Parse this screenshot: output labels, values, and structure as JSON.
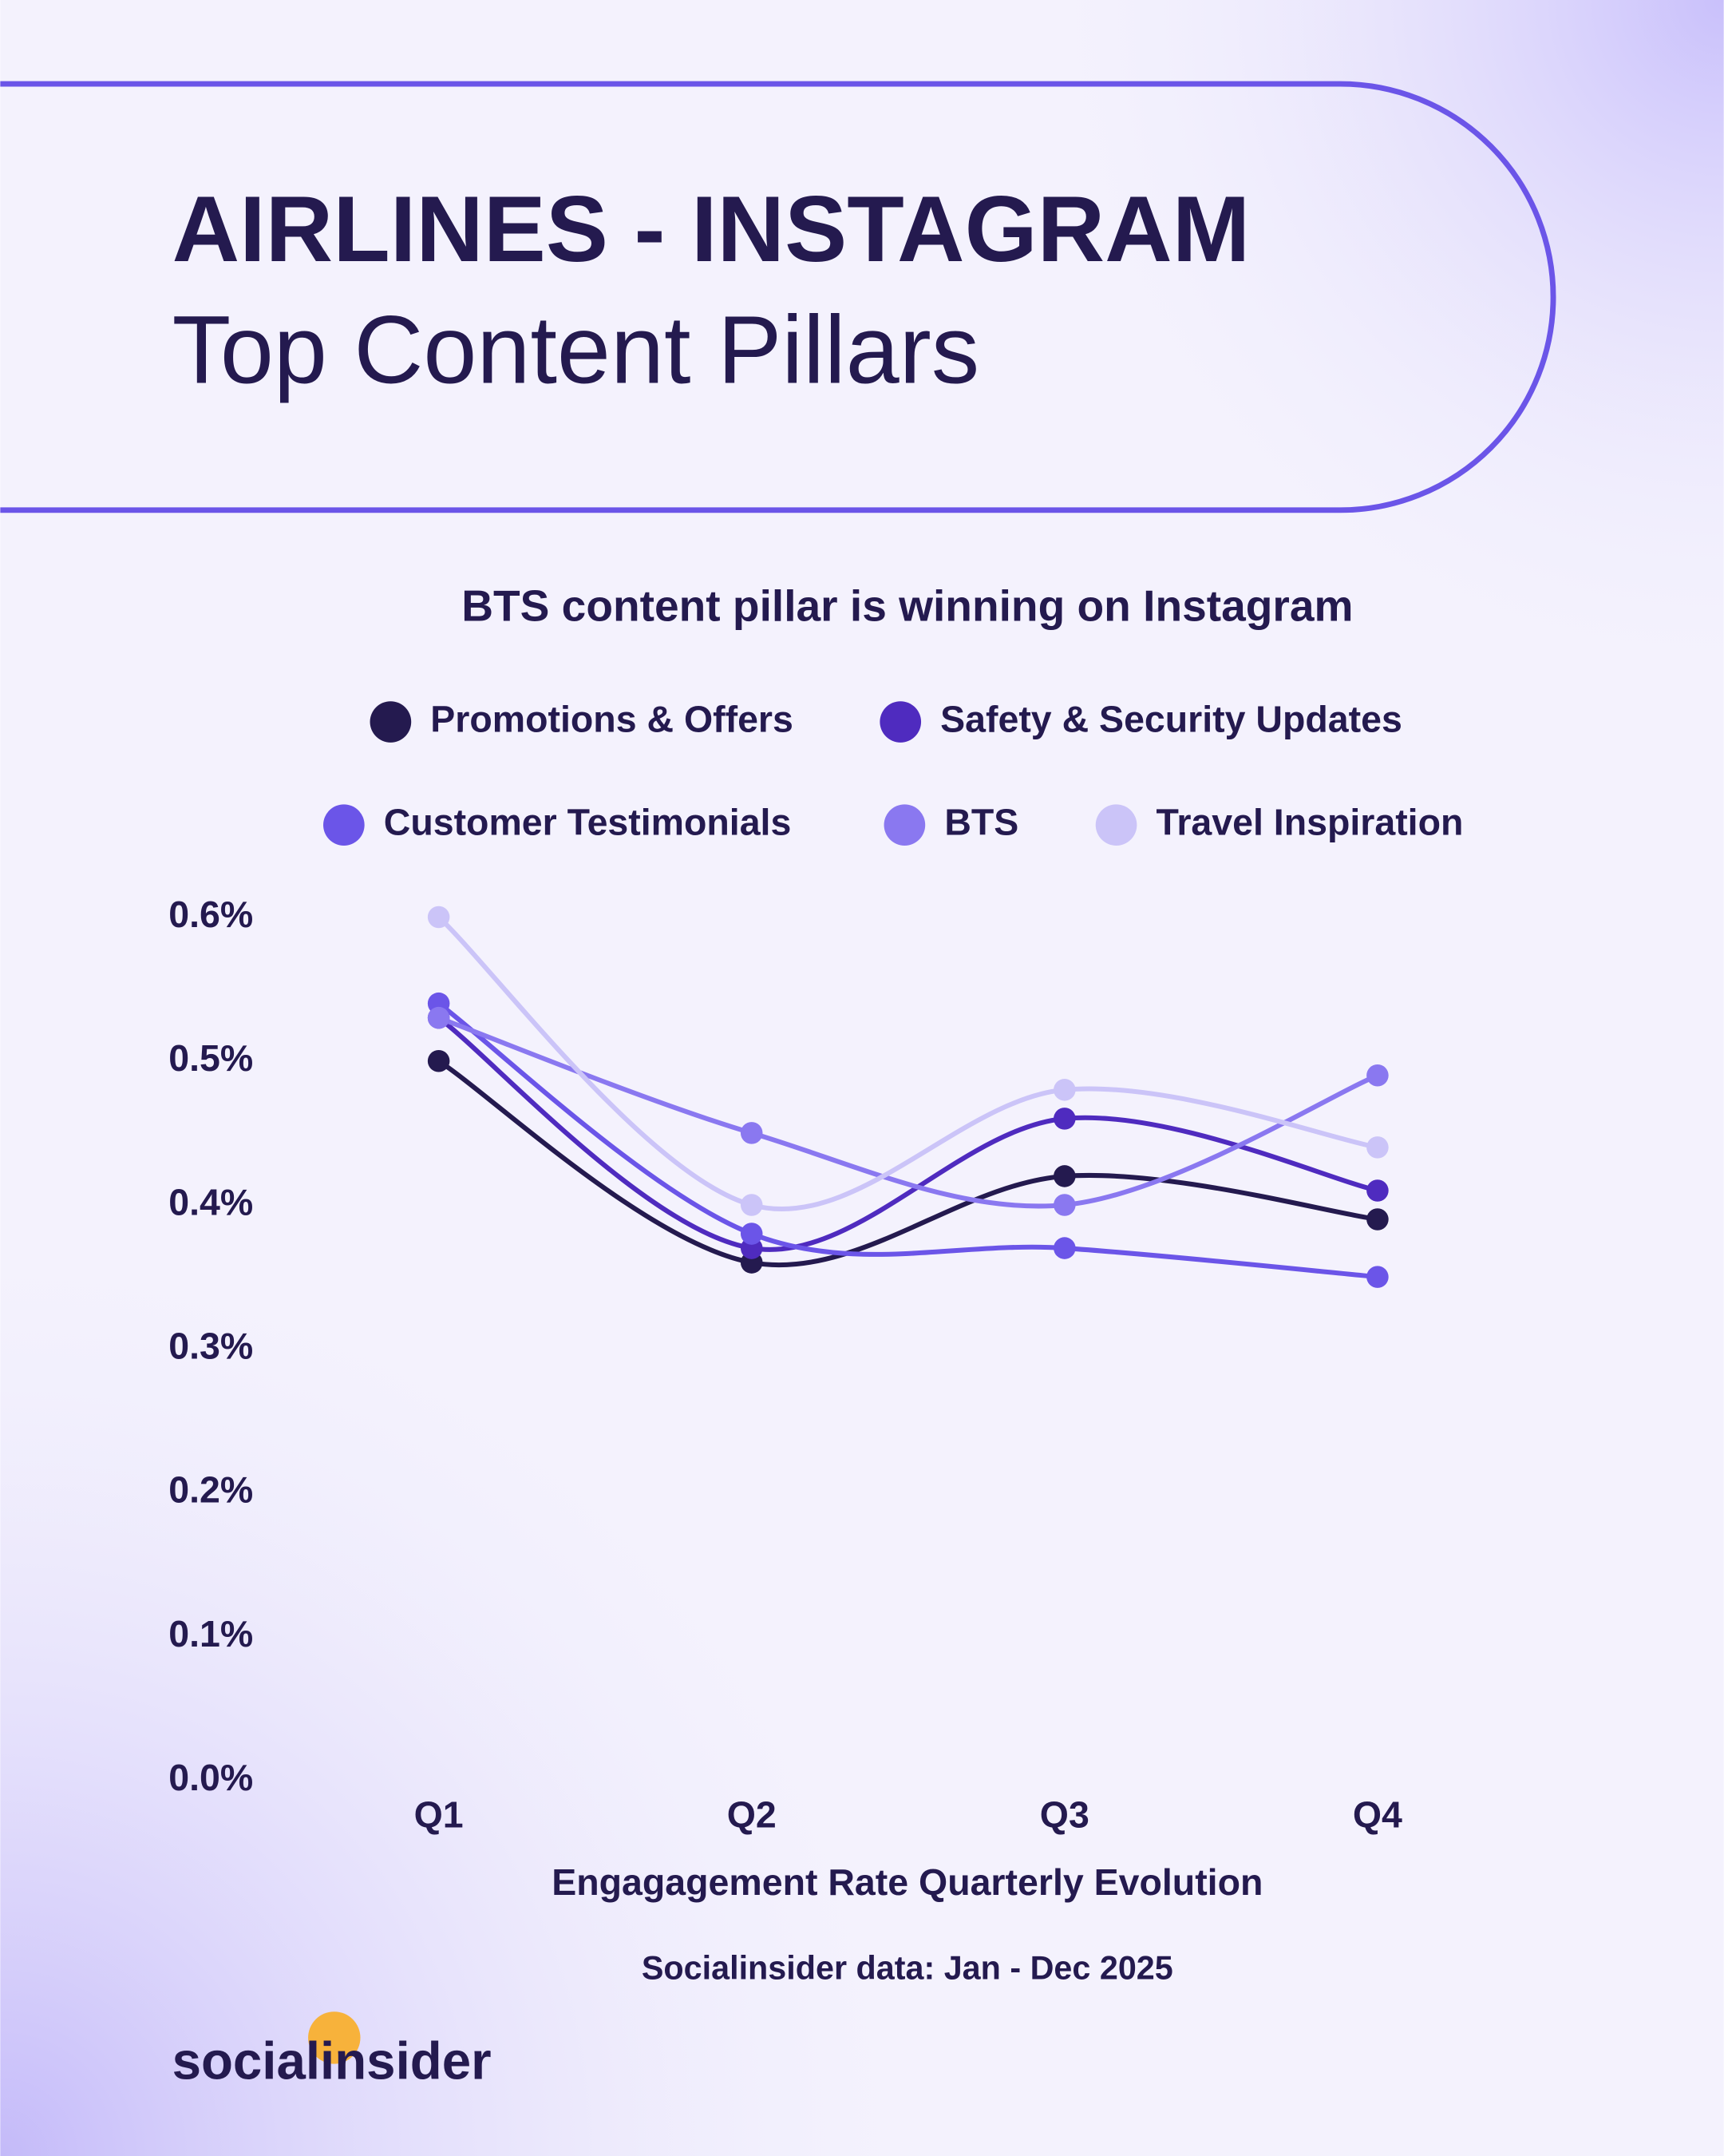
{
  "header": {
    "title": "AIRLINES - INSTAGRAM",
    "subtitle": "Top Content Pillars"
  },
  "chart_data": {
    "type": "line",
    "title": "BTS content pillar is winning on Instagram",
    "categories": [
      "Q1",
      "Q2",
      "Q3",
      "Q4"
    ],
    "series": [
      {
        "name": "Promotions & Offers",
        "color": "#241a4f",
        "values": [
          0.5,
          0.36,
          0.42,
          0.39
        ]
      },
      {
        "name": "Safety & Security Updates",
        "color": "#4f2bbf",
        "values": [
          0.53,
          0.37,
          0.46,
          0.41
        ]
      },
      {
        "name": "Customer Testimonials",
        "color": "#6b55e8",
        "values": [
          0.54,
          0.38,
          0.37,
          0.35
        ]
      },
      {
        "name": "BTS",
        "color": "#8a78f0",
        "values": [
          0.53,
          0.45,
          0.4,
          0.49
        ]
      },
      {
        "name": "Travel Inspiration",
        "color": "#cbc4f8",
        "values": [
          0.6,
          0.4,
          0.48,
          0.44
        ]
      }
    ],
    "ylim": [
      0,
      0.6
    ],
    "yticks": [
      {
        "value": 0,
        "label": "0.0%"
      },
      {
        "value": 0.1,
        "label": "0.1%"
      },
      {
        "value": 0.2,
        "label": "0.2%"
      },
      {
        "value": 0.3,
        "label": "0.3%"
      },
      {
        "value": 0.4,
        "label": "0.4%"
      },
      {
        "value": 0.5,
        "label": "0.5%"
      },
      {
        "value": 0.6,
        "label": "0.6%"
      }
    ],
    "xlabel": "Engagagement Rate Quarterly Evolution",
    "source": "Socialinsider data: Jan - Dec 2025",
    "grid": false
  },
  "logo": "socialinsider"
}
